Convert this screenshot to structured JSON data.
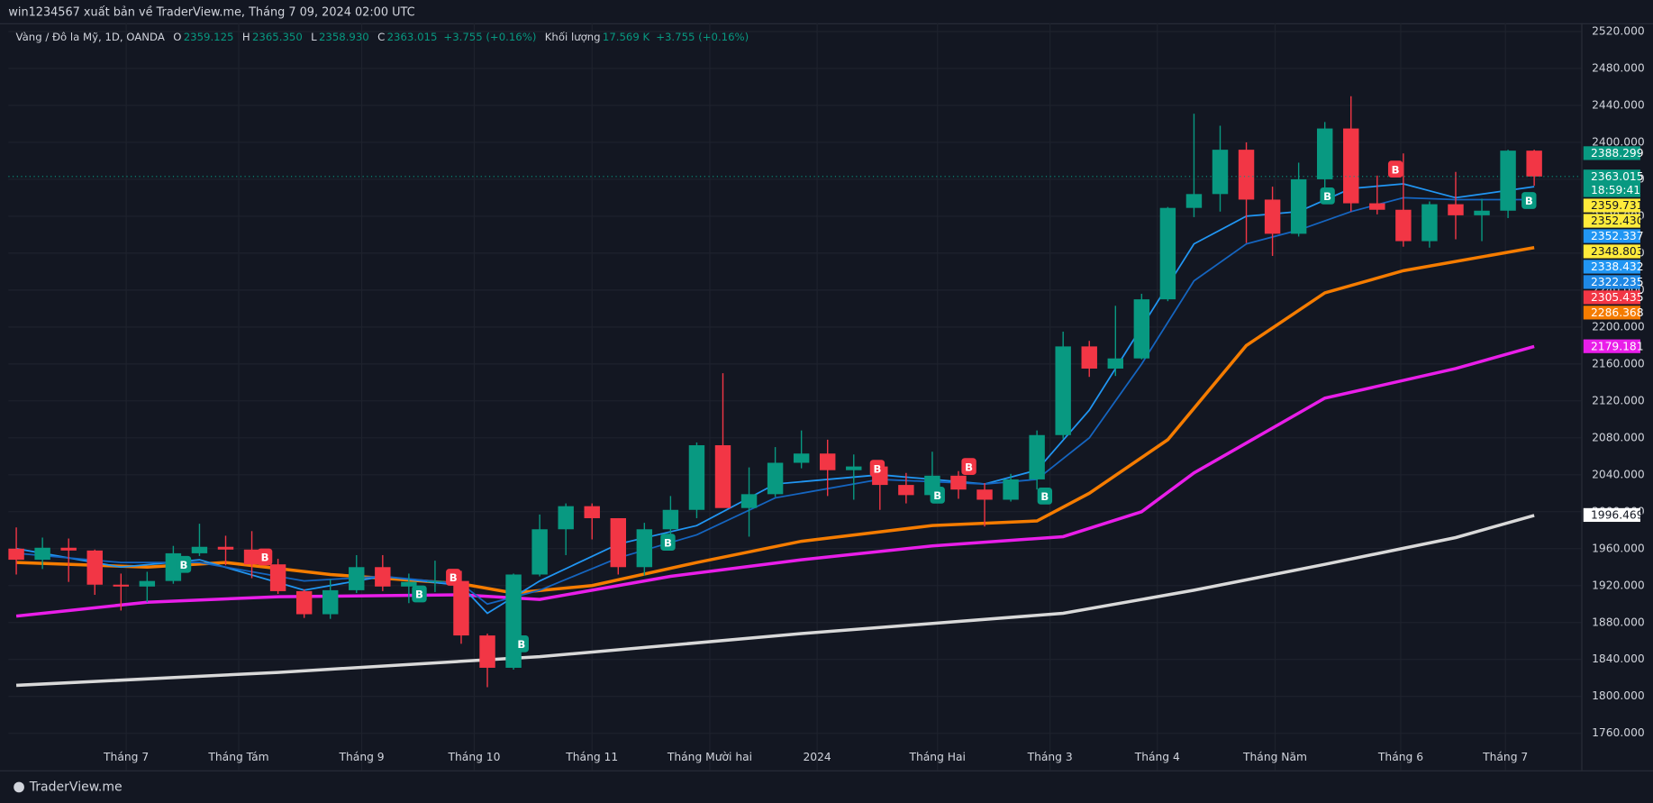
{
  "header": "win1234567 xuất bản về TraderView.me, Tháng 7 09, 2024 02:00 UTC",
  "footer": "TraderView.me",
  "legend": {
    "symbol": "Vàng / Đô la Mỹ, 1D, OANDA",
    "items": [
      {
        "key": "O",
        "value": "2359.125"
      },
      {
        "key": "H",
        "value": "2365.350"
      },
      {
        "key": "L",
        "value": "2358.930"
      },
      {
        "key": "C",
        "value": "2363.015"
      },
      {
        "key": "",
        "value": "+3.755 (+0.16%)"
      },
      {
        "key": "Khối lượng",
        "value": "17.569 K"
      },
      {
        "key": "",
        "value": "+3.755 (+0.16%)"
      }
    ]
  },
  "chart_data": {
    "type": "candlestick",
    "up_color": "#089981",
    "down_color": "#f23645",
    "grid": true,
    "xlim": [
      -0.3,
      59.8
    ],
    "ylim": [
      1720,
      2529
    ],
    "xticks": [
      {
        "value": 4.2,
        "label": "Tháng 7"
      },
      {
        "value": 8.5,
        "label": "Tháng Tám"
      },
      {
        "value": 13.2,
        "label": "Tháng 9"
      },
      {
        "value": 17.5,
        "label": "Tháng 10"
      },
      {
        "value": 22,
        "label": "Tháng 11"
      },
      {
        "value": 26.5,
        "label": "Tháng Mười hai"
      },
      {
        "value": 30.6,
        "label": "2024"
      },
      {
        "value": 35.2,
        "label": "Tháng Hai"
      },
      {
        "value": 39.5,
        "label": "Tháng 3"
      },
      {
        "value": 43.6,
        "label": "Tháng 4"
      },
      {
        "value": 48.1,
        "label": "Tháng Năm"
      },
      {
        "value": 52.9,
        "label": "Tháng 6"
      },
      {
        "value": 56.9,
        "label": "Tháng 7"
      }
    ],
    "yticks": [
      {
        "value": 1760,
        "label": "1760.000"
      },
      {
        "value": 1800,
        "label": "1800.000"
      },
      {
        "value": 1840,
        "label": "1840.000"
      },
      {
        "value": 1880,
        "label": "1880.000"
      },
      {
        "value": 1920,
        "label": "1920.000"
      },
      {
        "value": 1960,
        "label": "1960.000"
      },
      {
        "value": 2000,
        "label": "2000.000"
      },
      {
        "value": 2040,
        "label": "2040.000"
      },
      {
        "value": 2080,
        "label": "2080.000"
      },
      {
        "value": 2120,
        "label": "2120.000"
      },
      {
        "value": 2160,
        "label": "2160.000"
      },
      {
        "value": 2200,
        "label": "2200.000"
      },
      {
        "value": 2240,
        "label": "2240.000"
      },
      {
        "value": 2280,
        "label": "2280.000"
      },
      {
        "value": 2320,
        "label": "2320.000"
      },
      {
        "value": 2360,
        "label": "2360.000"
      },
      {
        "value": 2400,
        "label": "2400.000"
      },
      {
        "value": 2440,
        "label": "2440.000"
      },
      {
        "value": 2480,
        "label": "2480.000"
      },
      {
        "value": 2520,
        "label": "2520.000"
      }
    ],
    "candles": [
      [
        1960,
        1983,
        1932,
        1948
      ],
      [
        1948,
        1972,
        1938,
        1961
      ],
      [
        1961,
        1971,
        1924,
        1958
      ],
      [
        1958,
        1959,
        1910,
        1921
      ],
      [
        1921,
        1933,
        1893,
        1919
      ],
      [
        1919,
        1935,
        1902,
        1925
      ],
      [
        1925,
        1963,
        1922,
        1955
      ],
      [
        1955,
        1987,
        1952,
        1962
      ],
      [
        1962,
        1974,
        1942,
        1959
      ],
      [
        1959,
        1979,
        1928,
        1943
      ],
      [
        1943,
        1949,
        1911,
        1914
      ],
      [
        1914,
        1916,
        1885,
        1889
      ],
      [
        1889,
        1927,
        1884,
        1915
      ],
      [
        1915,
        1953,
        1912,
        1940
      ],
      [
        1940,
        1953,
        1914,
        1919
      ],
      [
        1919,
        1933,
        1901,
        1924
      ],
      [
        1924,
        1947,
        1913,
        1925
      ],
      [
        1925,
        1936,
        1857,
        1866
      ],
      [
        1866,
        1868,
        1810,
        1831
      ],
      [
        1831,
        1933,
        1829,
        1932
      ],
      [
        1932,
        1997,
        1930,
        1981
      ],
      [
        1981,
        2009,
        1953,
        2006
      ],
      [
        2006,
        2009,
        1970,
        1993
      ],
      [
        1993,
        1993,
        1932,
        1940
      ],
      [
        1940,
        1988,
        1931,
        1981
      ],
      [
        1981,
        2017,
        1965,
        2002
      ],
      [
        2002,
        2075,
        1993,
        2072
      ],
      [
        2072,
        2150,
        2010,
        2004
      ],
      [
        2004,
        2048,
        1973,
        2019
      ],
      [
        2019,
        2070,
        2016,
        2053
      ],
      [
        2053,
        2088,
        2047,
        2063
      ],
      [
        2063,
        2078,
        2017,
        2045
      ],
      [
        2045,
        2062,
        2013,
        2049
      ],
      [
        2049,
        2050,
        2002,
        2029
      ],
      [
        2029,
        2042,
        2009,
        2018
      ],
      [
        2018,
        2065,
        2015,
        2039
      ],
      [
        2039,
        2044,
        2014,
        2024
      ],
      [
        2024,
        2031,
        1984,
        2013
      ],
      [
        2013,
        2041,
        2011,
        2035
      ],
      [
        2035,
        2088,
        2024,
        2083
      ],
      [
        2083,
        2195,
        2079,
        2179
      ],
      [
        2179,
        2185,
        2146,
        2155
      ],
      [
        2155,
        2223,
        2147,
        2166
      ],
      [
        2166,
        2236,
        2165,
        2230
      ],
      [
        2230,
        2330,
        2228,
        2329
      ],
      [
        2329,
        2431,
        2319,
        2344
      ],
      [
        2344,
        2418,
        2325,
        2392
      ],
      [
        2392,
        2400,
        2291,
        2338
      ],
      [
        2338,
        2352,
        2277,
        2301
      ],
      [
        2301,
        2378,
        2298,
        2360
      ],
      [
        2360,
        2422,
        2341,
        2415
      ],
      [
        2415,
        2450,
        2325,
        2334
      ],
      [
        2334,
        2364,
        2322,
        2327
      ],
      [
        2327,
        2388,
        2287,
        2293
      ],
      [
        2293,
        2336,
        2286,
        2333
      ],
      [
        2333,
        2368,
        2295,
        2321
      ],
      [
        2321,
        2339,
        2293,
        2326
      ],
      [
        2326,
        2392,
        2318,
        2391
      ],
      [
        2391,
        2392,
        2353,
        2363
      ]
    ],
    "series": [
      {
        "color": "#d9d9d9",
        "width": 3,
        "x": [
          0,
          10,
          17,
          20,
          30,
          40,
          45,
          50,
          55,
          58
        ],
        "values": [
          1812,
          1826,
          1838,
          1843,
          1868,
          1890,
          1915,
          1943,
          1972,
          1996
        ]
      },
      {
        "color": "#e91ee9",
        "width": 3,
        "x": [
          0,
          5,
          10,
          17,
          20,
          25,
          30,
          35,
          40,
          43,
          45,
          50,
          55,
          58
        ],
        "values": [
          1887,
          1902,
          1908,
          1910,
          1905,
          1930,
          1948,
          1963,
          1973,
          2000,
          2042,
          2123,
          2155,
          2179
        ]
      },
      {
        "color": "#f57c00",
        "width": 3,
        "x": [
          0,
          5,
          8,
          12,
          17,
          19,
          22,
          26,
          30,
          35,
          39,
          41,
          44,
          47,
          50,
          53,
          58
        ],
        "values": [
          1945,
          1940,
          1945,
          1932,
          1922,
          1912,
          1920,
          1945,
          1968,
          1985,
          1990,
          2020,
          2078,
          2180,
          2237,
          2261,
          2286
        ]
      },
      {
        "color": "#2196f3",
        "width": 1.5,
        "x": [
          0,
          4,
          7,
          11,
          14,
          17,
          18,
          20,
          23,
          26,
          29,
          33,
          37,
          39,
          41,
          43,
          45,
          47,
          49,
          51,
          53,
          55,
          58
        ],
        "values": [
          1960,
          1940,
          1948,
          1915,
          1930,
          1920,
          1890,
          1925,
          1965,
          1985,
          2030,
          2040,
          2030,
          2045,
          2110,
          2200,
          2290,
          2320,
          2325,
          2350,
          2355,
          2340,
          2352
        ]
      },
      {
        "color": "#1565c0",
        "width": 1.5,
        "x": [
          0,
          4,
          7,
          11,
          14,
          17,
          18,
          20,
          23,
          26,
          29,
          33,
          37,
          39,
          41,
          43,
          45,
          47,
          49,
          51,
          53,
          55,
          58
        ],
        "values": [
          1955,
          1945,
          1945,
          1925,
          1930,
          1922,
          1900,
          1915,
          1950,
          1975,
          2015,
          2035,
          2030,
          2035,
          2080,
          2160,
          2250,
          2290,
          2305,
          2325,
          2340,
          2338,
          2338
        ]
      }
    ],
    "signals": [
      {
        "x": 6.4,
        "price": 1943,
        "label": "B",
        "color": "#089981"
      },
      {
        "x": 9.5,
        "price": 1951,
        "label": "B",
        "color": "#f23645"
      },
      {
        "x": 15.4,
        "price": 1911,
        "label": "B",
        "color": "#089981"
      },
      {
        "x": 16.7,
        "price": 1929,
        "label": "B",
        "color": "#f23645"
      },
      {
        "x": 19.3,
        "price": 1857,
        "label": "B",
        "color": "#089981"
      },
      {
        "x": 24.9,
        "price": 1967,
        "label": "B",
        "color": "#089981"
      },
      {
        "x": 32.9,
        "price": 2047,
        "label": "B",
        "color": "#f23645"
      },
      {
        "x": 35.2,
        "price": 2018,
        "label": "B",
        "color": "#089981"
      },
      {
        "x": 36.4,
        "price": 2049,
        "label": "B",
        "color": "#f23645"
      },
      {
        "x": 39.3,
        "price": 2017,
        "label": "B",
        "color": "#089981"
      },
      {
        "x": 50.1,
        "price": 2342,
        "label": "B",
        "color": "#089981"
      },
      {
        "x": 52.7,
        "price": 2371,
        "label": "B",
        "color": "#f23645"
      },
      {
        "x": 57.8,
        "price": 2337,
        "label": "B",
        "color": "#089981"
      }
    ],
    "price_tags": [
      {
        "value": 2388.299,
        "label": "2388.299",
        "color": "#089981",
        "text_color": "#ffffff"
      },
      {
        "value": 2363.015,
        "label": "2363.015",
        "color": "#089981",
        "text_color": "#ffffff",
        "countdown": "18:59:41"
      },
      {
        "value": 2359.731,
        "label": "2359.731",
        "color": "#ffeb3b",
        "text_color": "#131722"
      },
      {
        "value": 2352.43,
        "label": "2352.430",
        "color": "#ffeb3b",
        "text_color": "#131722"
      },
      {
        "value": 2352.337,
        "label": "2352.337",
        "color": "#2196f3",
        "text_color": "#ffffff"
      },
      {
        "value": 2348.803,
        "label": "2348.803",
        "color": "#ffeb3b",
        "text_color": "#131722"
      },
      {
        "value": 2338.432,
        "label": "2338.432",
        "color": "#2196f3",
        "text_color": "#ffffff"
      },
      {
        "value": 2322.235,
        "label": "2322.235",
        "color": "#1e88e5",
        "text_color": "#ffffff"
      },
      {
        "value": 2305.435,
        "label": "2305.435",
        "color": "#f23645",
        "text_color": "#ffffff"
      },
      {
        "value": 2286.368,
        "label": "2286.368",
        "color": "#f57c00",
        "text_color": "#ffffff"
      },
      {
        "value": 2179.181,
        "label": "2179.181",
        "color": "#e91ee9",
        "text_color": "#ffffff"
      },
      {
        "value": 1996.469,
        "label": "1996.469",
        "color": "#ffffff",
        "text_color": "#131722"
      }
    ]
  }
}
